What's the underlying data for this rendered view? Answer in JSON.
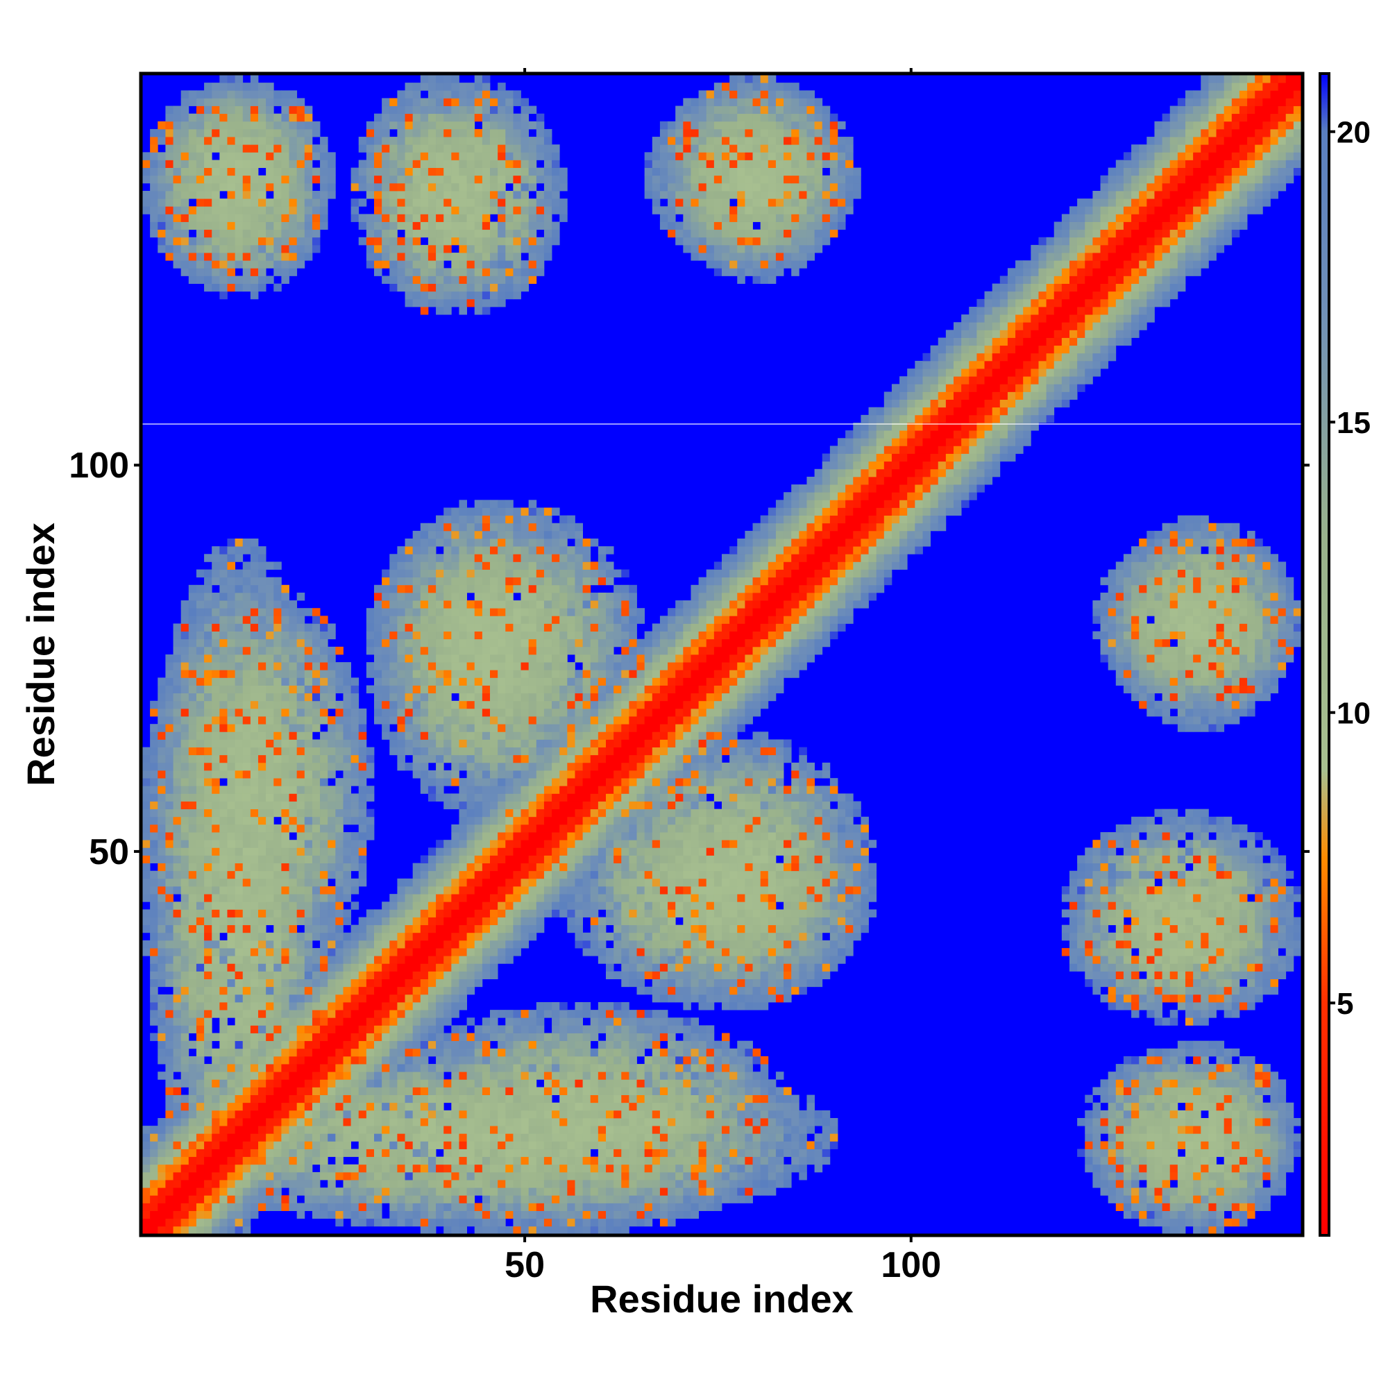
{
  "chart_data": {
    "type": "heatmap",
    "title": "",
    "xlabel": "Residue index",
    "ylabel": "Residue index",
    "n_residues": 150,
    "xlim": [
      1,
      150
    ],
    "ylim": [
      1,
      150
    ],
    "x_ticks": [
      50,
      100
    ],
    "y_ticks": [
      50,
      100
    ],
    "x_tick_labels": [
      "50",
      "100"
    ],
    "y_tick_labels": [
      "50",
      "100"
    ],
    "colorbar": {
      "range": [
        1,
        21
      ],
      "ticks": [
        5,
        10,
        15,
        20
      ],
      "tick_labels": [
        "5",
        "10",
        "15",
        "20"
      ],
      "color_stops": [
        {
          "value": 1,
          "color": "#ff0000"
        },
        {
          "value": 5,
          "color": "#ff3000"
        },
        {
          "value": 7.5,
          "color": "#ff8c00"
        },
        {
          "value": 9,
          "color": "#a8c090"
        },
        {
          "value": 13,
          "color": "#9ab28c"
        },
        {
          "value": 17,
          "color": "#6f8fb8"
        },
        {
          "value": 20,
          "color": "#5a7fc0"
        },
        {
          "value": 21,
          "color": "#0000ff"
        }
      ]
    },
    "background_value": 21,
    "contact_regions": [
      {
        "x_range": [
          1,
          150
        ],
        "y_range": [
          1,
          150
        ],
        "type": "diagonal",
        "note": "main diagonal band"
      },
      {
        "x_range": [
          1,
          25
        ],
        "y_range": [
          1,
          90
        ],
        "type": "off-diagonal"
      },
      {
        "x_range": [
          30,
          85
        ],
        "y_range": [
          1,
          30
        ],
        "type": "off-diagonal"
      },
      {
        "x_range": [
          30,
          60
        ],
        "y_range": [
          55,
          95
        ],
        "type": "off-diagonal"
      },
      {
        "x_range": [
          60,
          95
        ],
        "y_range": [
          30,
          65
        ],
        "type": "off-diagonal"
      },
      {
        "x_range": [
          1,
          25
        ],
        "y_range": [
          125,
          150
        ],
        "type": "off-diagonal"
      },
      {
        "x_range": [
          28,
          50
        ],
        "y_range": [
          120,
          150
        ],
        "type": "off-diagonal"
      },
      {
        "x_range": [
          66,
          93
        ],
        "y_range": [
          125,
          150
        ],
        "type": "off-diagonal"
      },
      {
        "x_range": [
          122,
          150
        ],
        "y_range": [
          1,
          25
        ],
        "type": "off-diagonal"
      },
      {
        "x_range": [
          120,
          150
        ],
        "y_range": [
          30,
          55
        ],
        "type": "off-diagonal"
      },
      {
        "x_range": [
          124,
          150
        ],
        "y_range": [
          68,
          92
        ],
        "type": "off-diagonal"
      }
    ]
  }
}
